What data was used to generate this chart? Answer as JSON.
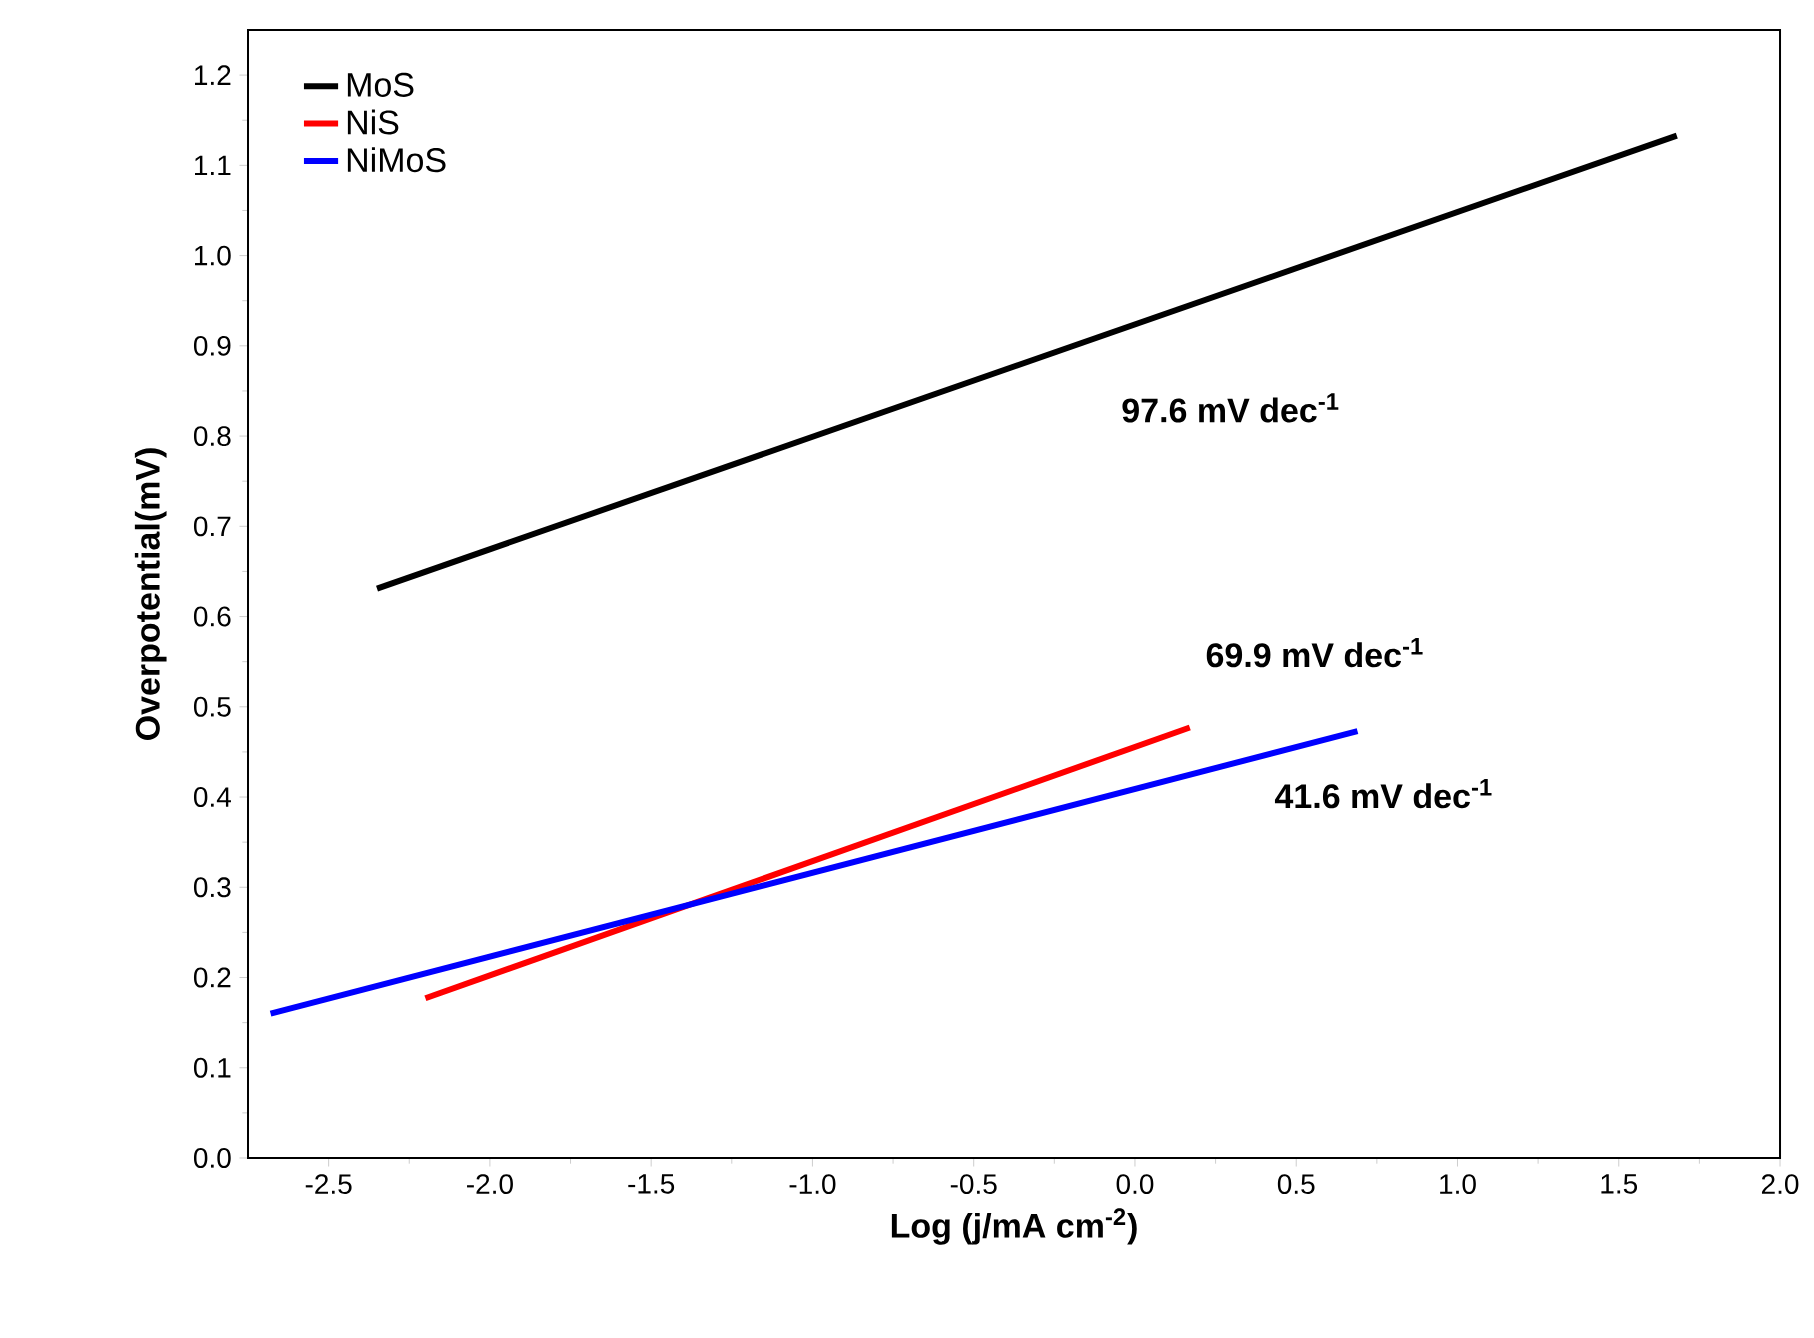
{
  "chart_data": {
    "type": "line",
    "xlabel": "Log (j/mA cm$^{-2}$)",
    "ylabel": "Overpotential(mV)",
    "xlim": [
      -2.75,
      2.0
    ],
    "ylim": [
      0.0,
      1.25
    ],
    "xticks": [
      {
        "value": -2.5,
        "label": "-2.5"
      },
      {
        "value": -2.0,
        "label": "-2.0"
      },
      {
        "value": -1.5,
        "label": "-1.5"
      },
      {
        "value": -1.0,
        "label": "-1.0"
      },
      {
        "value": -0.5,
        "label": "-0.5"
      },
      {
        "value": 0.0,
        "label": "0.0"
      },
      {
        "value": 0.5,
        "label": "0.5"
      },
      {
        "value": 1.0,
        "label": "1.0"
      },
      {
        "value": 1.5,
        "label": "1.5"
      },
      {
        "value": 2.0,
        "label": "2.0"
      }
    ],
    "yticks": [
      {
        "value": 0.0,
        "label": "0.0"
      },
      {
        "value": 0.1,
        "label": "0.1"
      },
      {
        "value": 0.2,
        "label": "0.2"
      },
      {
        "value": 0.3,
        "label": "0.3"
      },
      {
        "value": 0.4,
        "label": "0.4"
      },
      {
        "value": 0.5,
        "label": "0.5"
      },
      {
        "value": 0.6,
        "label": "0.6"
      },
      {
        "value": 0.7,
        "label": "0.7"
      },
      {
        "value": 0.8,
        "label": "0.8"
      },
      {
        "value": 0.9,
        "label": "0.9"
      },
      {
        "value": 1.0,
        "label": "1.0"
      },
      {
        "value": 1.1,
        "label": "1.1"
      },
      {
        "value": 1.2,
        "label": "1.2"
      }
    ],
    "series": [
      {
        "name": "MoS",
        "color": "#000000",
        "x": [
          -2.35,
          1.68
        ],
        "values": [
          0.631,
          1.133
        ]
      },
      {
        "name": "NiS",
        "color": "#ff0000",
        "x": [
          -2.2,
          0.17
        ],
        "values": [
          0.177,
          0.477
        ]
      },
      {
        "name": "NiMoS",
        "color": "#0000ff",
        "x": [
          -2.68,
          0.69
        ],
        "values": [
          0.16,
          0.473
        ]
      }
    ],
    "annotations": [
      "97.6 mV dec$^{-1}$",
      "69.9 mV dec$^{-1}$",
      "41.6 mV dec$^{-1}$"
    ],
    "legend": "top left",
    "grid": false,
    "line_style": "solid",
    "marker": "none"
  }
}
